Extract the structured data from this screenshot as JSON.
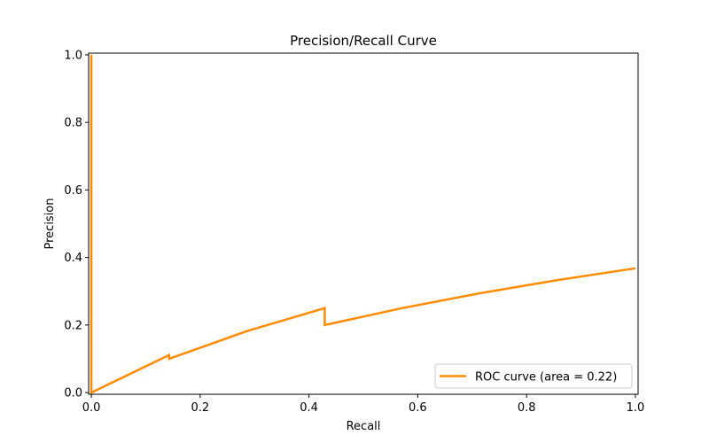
{
  "chart_data": {
    "type": "line",
    "title": "Precision/Recall Curve",
    "xlabel": "Recall",
    "ylabel": "Precision",
    "xlim": [
      -0.005,
      1.005
    ],
    "ylim": [
      -0.005,
      1.005
    ],
    "xticks": [
      0.0,
      0.2,
      0.4,
      0.6,
      0.8,
      1.0
    ],
    "yticks": [
      0.0,
      0.2,
      0.4,
      0.6,
      0.8,
      1.0
    ],
    "xtick_labels": [
      "0.0",
      "0.2",
      "0.4",
      "0.6",
      "0.8",
      "1.0"
    ],
    "ytick_labels": [
      "0.0",
      "0.2",
      "0.4",
      "0.6",
      "0.8",
      "1.0"
    ],
    "grid": false,
    "legend_position": "lower-right",
    "series": [
      {
        "name": "ROC curve (area = 0.22)",
        "color": "#ff8c00",
        "x": [
          0.0,
          0.0,
          0.0,
          0.143,
          0.143,
          0.286,
          0.429,
          0.429,
          0.571,
          0.714,
          0.857,
          1.0
        ],
        "y": [
          1.0,
          0.0,
          0.0,
          0.111,
          0.1,
          0.182,
          0.25,
          0.2,
          0.25,
          0.294,
          0.333,
          0.368
        ]
      }
    ]
  }
}
